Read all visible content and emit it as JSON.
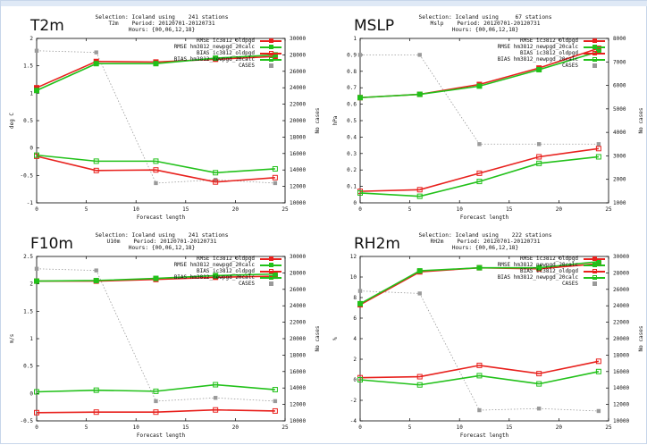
{
  "colors": {
    "red": "#e8211d",
    "green": "#22c11a",
    "cases": "#9a9a9a",
    "border": "#c7d6ea"
  },
  "series_names": {
    "rmse_a": "RMSE ic3812_oldpgd",
    "rmse_b": "RMSE hm3812_newpgd_20calc",
    "bias_a": "BIAS ic3812_oldpgd",
    "bias_b": "BIAS hm3812_newpgd_20calc",
    "cases": "CASES"
  },
  "chart_data": [
    {
      "type": "line",
      "big_title": "T2m",
      "header": [
        "Selection: Iceland using    241 stations",
        "T2m    Period: 20120701-20120731",
        "Hours: {00,06,12,18}"
      ],
      "xlabel": "Forecast length",
      "ylabel": "deg C",
      "y2label": "No cases",
      "x": [
        0,
        6,
        12,
        18,
        24
      ],
      "xlim": [
        0,
        25
      ],
      "xticks": [
        0,
        5,
        10,
        15,
        20,
        25
      ],
      "ylim": [
        -1,
        2
      ],
      "yticks": [
        -1,
        -0.5,
        0,
        0.5,
        1,
        1.5,
        2
      ],
      "y2lim": [
        10000,
        30000
      ],
      "y2ticks": [
        10000,
        12000,
        14000,
        16000,
        18000,
        20000,
        22000,
        24000,
        26000,
        28000,
        30000
      ],
      "series": [
        {
          "key": "rmse_a",
          "values": [
            1.1,
            1.58,
            1.57,
            1.62,
            1.67
          ]
        },
        {
          "key": "rmse_b",
          "values": [
            1.05,
            1.54,
            1.54,
            1.64,
            1.7
          ]
        },
        {
          "key": "bias_a",
          "values": [
            -0.15,
            -0.41,
            -0.4,
            -0.62,
            -0.54
          ]
        },
        {
          "key": "bias_b",
          "values": [
            -0.13,
            -0.24,
            -0.24,
            -0.45,
            -0.38
          ]
        }
      ],
      "cases": [
        28500,
        28300,
        12400,
        12800,
        12400
      ]
    },
    {
      "type": "line",
      "big_title": "MSLP",
      "header": [
        "Selection: Iceland using     67 stations",
        "Mslp    Period: 20120701-20120731",
        "Hours: {00,06,12,18}"
      ],
      "xlabel": "Forecast length",
      "ylabel": "hPa",
      "y2label": "No cases",
      "x": [
        0,
        6,
        12,
        18,
        24
      ],
      "xlim": [
        0,
        25
      ],
      "xticks": [
        0,
        5,
        10,
        15,
        20,
        25
      ],
      "ylim": [
        0,
        1
      ],
      "yticks": [
        0,
        0.1,
        0.2,
        0.3,
        0.4,
        0.5,
        0.6,
        0.7,
        0.8,
        0.9,
        1
      ],
      "y2lim": [
        1000,
        8000
      ],
      "y2ticks": [
        1000,
        2000,
        3000,
        4000,
        5000,
        6000,
        7000,
        8000
      ],
      "series": [
        {
          "key": "rmse_a",
          "values": [
            0.64,
            0.66,
            0.72,
            0.82,
            0.94
          ]
        },
        {
          "key": "rmse_b",
          "values": [
            0.64,
            0.66,
            0.71,
            0.81,
            0.92
          ]
        },
        {
          "key": "bias_a",
          "values": [
            0.07,
            0.08,
            0.18,
            0.28,
            0.33
          ]
        },
        {
          "key": "bias_b",
          "values": [
            0.06,
            0.04,
            0.13,
            0.24,
            0.28
          ]
        }
      ],
      "cases": [
        7300,
        7300,
        3500,
        3500,
        3500
      ]
    },
    {
      "type": "line",
      "big_title": "F10m",
      "header": [
        "Selection: Iceland using    241 stations",
        "U10m    Period: 20120701-20120731",
        "Hours: {00,06,12,18}"
      ],
      "xlabel": "Forecast length",
      "ylabel": "m/s",
      "y2label": "No cases",
      "x": [
        0,
        6,
        12,
        18,
        24
      ],
      "xlim": [
        0,
        25
      ],
      "xticks": [
        0,
        5,
        10,
        15,
        20,
        25
      ],
      "ylim": [
        -0.5,
        2.5
      ],
      "yticks": [
        -0.5,
        0,
        0.5,
        1,
        1.5,
        2,
        2.5
      ],
      "y2lim": [
        10000,
        30000
      ],
      "y2ticks": [
        10000,
        12000,
        14000,
        16000,
        18000,
        20000,
        22000,
        24000,
        26000,
        28000,
        30000
      ],
      "series": [
        {
          "key": "rmse_a",
          "values": [
            2.05,
            2.05,
            2.08,
            2.12,
            2.14
          ]
        },
        {
          "key": "rmse_b",
          "values": [
            2.05,
            2.06,
            2.1,
            2.15,
            2.18
          ]
        },
        {
          "key": "bias_a",
          "values": [
            -0.35,
            -0.34,
            -0.34,
            -0.3,
            -0.32
          ]
        },
        {
          "key": "bias_b",
          "values": [
            0.03,
            0.06,
            0.04,
            0.16,
            0.07
          ]
        }
      ],
      "cases": [
        28500,
        28300,
        12400,
        12800,
        12400
      ]
    },
    {
      "type": "line",
      "big_title": "RH2m",
      "header": [
        "Selection: Iceland using    222 stations",
        "RH2m    Period: 20120701-20120731",
        "Hours: {00,06,12,18}"
      ],
      "xlabel": "Forecast length",
      "ylabel": "%",
      "y2label": "No cases",
      "x": [
        0,
        6,
        12,
        18,
        24
      ],
      "xlim": [
        0,
        25
      ],
      "xticks": [
        0,
        5,
        10,
        15,
        20,
        25
      ],
      "ylim": [
        -4,
        12
      ],
      "yticks": [
        -4,
        -2,
        0,
        2,
        4,
        6,
        8,
        10,
        12
      ],
      "y2lim": [
        10000,
        30000
      ],
      "y2ticks": [
        10000,
        12000,
        14000,
        16000,
        18000,
        20000,
        22000,
        24000,
        26000,
        28000,
        30000
      ],
      "series": [
        {
          "key": "rmse_a",
          "values": [
            7.3,
            10.5,
            10.9,
            10.8,
            11.3
          ]
        },
        {
          "key": "rmse_b",
          "values": [
            7.4,
            10.6,
            10.9,
            10.9,
            11.5
          ]
        },
        {
          "key": "bias_a",
          "values": [
            0.2,
            0.3,
            1.4,
            0.6,
            1.8
          ]
        },
        {
          "key": "bias_b",
          "values": [
            0.0,
            -0.5,
            0.4,
            -0.4,
            0.8
          ]
        }
      ],
      "cases": [
        25800,
        25500,
        11300,
        11500,
        11200
      ]
    }
  ]
}
